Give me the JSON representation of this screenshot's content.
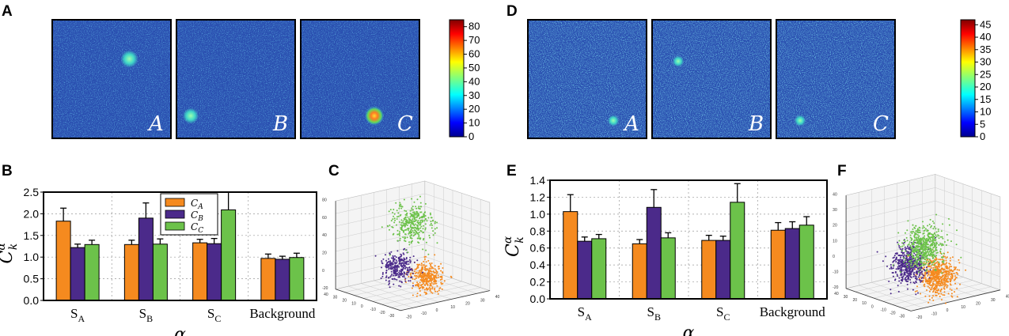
{
  "panel_letters": {
    "a": "A",
    "b": "B",
    "c": "C",
    "d": "D",
    "e": "E",
    "f": "F"
  },
  "heatmap_labels": [
    "A",
    "B",
    "C"
  ],
  "colors": {
    "orange": "#f58a1f",
    "purple": "#4b2a8a",
    "green": "#6cc24a",
    "heat_bg": "#2a4fb0"
  },
  "colorbar_A": {
    "ticks": [
      "0",
      "10",
      "20",
      "30",
      "40",
      "50",
      "60",
      "70",
      "80"
    ],
    "min": 0,
    "max": 85
  },
  "colorbar_D": {
    "ticks": [
      "0",
      "5",
      "10",
      "15",
      "20",
      "25",
      "30",
      "35",
      "40",
      "45"
    ],
    "min": 0,
    "max": 47
  },
  "chart_data": [
    {
      "id": "B",
      "type": "bar",
      "title": "",
      "categories": [
        "S_A",
        "S_B",
        "S_C",
        "Background"
      ],
      "category_main": [
        "S",
        "S",
        "S",
        "Background"
      ],
      "category_sub": [
        "A",
        "B",
        "C",
        ""
      ],
      "series": [
        {
          "name": "C_A",
          "values": [
            1.83,
            1.29,
            1.33,
            0.97
          ],
          "errors": [
            0.3,
            0.1,
            0.08,
            0.1
          ]
        },
        {
          "name": "C_B",
          "values": [
            1.22,
            1.9,
            1.31,
            0.95
          ],
          "errors": [
            0.08,
            0.35,
            0.12,
            0.07
          ]
        },
        {
          "name": "C_C",
          "values": [
            1.29,
            1.3,
            2.09,
            0.99
          ],
          "errors": [
            0.1,
            0.12,
            0.45,
            0.1
          ]
        }
      ],
      "legend": [
        "C_A",
        "C_B",
        "C_C"
      ],
      "legend_main": "C",
      "legend_subs": [
        "A",
        "B",
        "C"
      ],
      "legend_position": "top-center",
      "ylabel_main": "C",
      "ylabel_sub": "k",
      "ylabel_sup": "α",
      "xlabel": "α",
      "ylim": [
        0,
        2.5
      ],
      "yticks": [
        "0.0",
        "0.5",
        "1.0",
        "1.5",
        "2.0",
        "2.5"
      ],
      "grid": true
    },
    {
      "id": "E",
      "type": "bar",
      "title": "",
      "categories": [
        "S_A",
        "S_B",
        "S_C",
        "Background"
      ],
      "category_main": [
        "S",
        "S",
        "S",
        "Background"
      ],
      "category_sub": [
        "A",
        "B",
        "C",
        ""
      ],
      "series": [
        {
          "name": "C_A",
          "values": [
            1.03,
            0.65,
            0.69,
            0.81
          ],
          "errors": [
            0.2,
            0.05,
            0.06,
            0.09
          ]
        },
        {
          "name": "C_B",
          "values": [
            0.68,
            1.08,
            0.69,
            0.83
          ],
          "errors": [
            0.05,
            0.21,
            0.05,
            0.08
          ]
        },
        {
          "name": "C_C",
          "values": [
            0.71,
            0.72,
            1.14,
            0.87
          ],
          "errors": [
            0.05,
            0.06,
            0.22,
            0.1
          ]
        }
      ],
      "ylabel_main": "C",
      "ylabel_sub": "k",
      "ylabel_sup": "α",
      "xlabel": "α",
      "ylim": [
        0,
        1.4
      ],
      "yticks": [
        "0.0",
        "0.2",
        "0.4",
        "0.6",
        "0.8",
        "1.0",
        "1.2",
        "1.4"
      ],
      "grid": true
    },
    {
      "id": "C",
      "type": "scatter",
      "title": "",
      "projection": "3d",
      "series": [
        {
          "name": "cluster_A",
          "color": "orange",
          "center": [
            -20,
            0,
            0
          ],
          "spread": 6,
          "points": 350
        },
        {
          "name": "cluster_B",
          "color": "purple",
          "center": [
            20,
            0,
            0
          ],
          "spread": 6,
          "points": 300
        },
        {
          "name": "cluster_C",
          "color": "green",
          "center": [
            0,
            0,
            55
          ],
          "spread": 8,
          "points": 350
        }
      ],
      "zticks": [
        "-20",
        "0",
        "20",
        "40",
        "60",
        "80"
      ],
      "xticks": [
        "-30",
        "-20",
        "-10",
        "0",
        "10",
        "20",
        "30",
        "40"
      ],
      "yticks": [
        "-20",
        "-10",
        "0",
        "10",
        "20",
        "30",
        "40"
      ]
    },
    {
      "id": "F",
      "type": "scatter",
      "title": "",
      "projection": "3d",
      "series": [
        {
          "name": "cluster_A",
          "color": "orange",
          "center": [
            -20,
            0,
            0
          ],
          "spread": 7,
          "points": 550
        },
        {
          "name": "cluster_B",
          "color": "purple",
          "center": [
            20,
            0,
            0
          ],
          "spread": 7,
          "points": 500
        },
        {
          "name": "cluster_C",
          "color": "green",
          "center": [
            0,
            0,
            25
          ],
          "spread": 8,
          "points": 550
        }
      ],
      "zticks": [
        "-20",
        "-10",
        "0",
        "10",
        "20",
        "30",
        "40"
      ],
      "xticks": [
        "-30",
        "-20",
        "-10",
        "0",
        "10",
        "20",
        "30",
        "40"
      ],
      "yticks": [
        "-20",
        "-10",
        "0",
        "10",
        "20",
        "30",
        "40"
      ]
    }
  ]
}
